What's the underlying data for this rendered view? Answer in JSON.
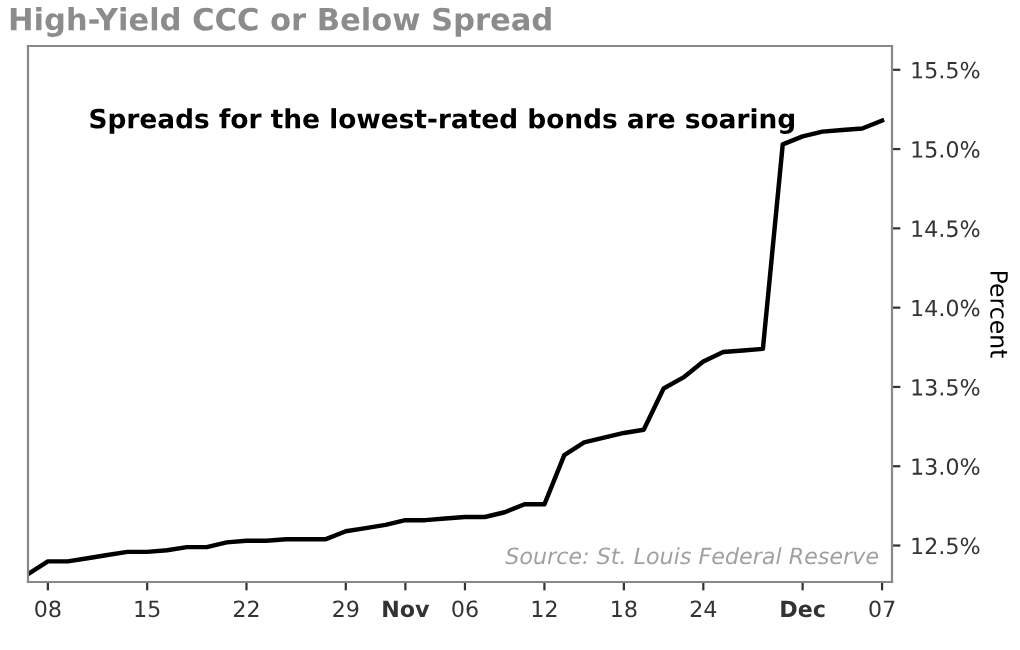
{
  "chart_data": {
    "type": "line",
    "title": "High-Yield CCC or Below Spread",
    "ylabel": "Percent",
    "categories": [
      null,
      "08",
      null,
      null,
      null,
      null,
      "15",
      null,
      null,
      null,
      null,
      "22",
      null,
      null,
      null,
      null,
      "29",
      null,
      null,
      "Nov",
      null,
      null,
      "06",
      null,
      null,
      null,
      "12",
      null,
      null,
      null,
      "18",
      null,
      null,
      null,
      "24",
      null,
      null,
      null,
      null,
      "Dec",
      null,
      null,
      null,
      "07"
    ],
    "series": [
      {
        "color": "#000000",
        "values": [
          12.32,
          12.4,
          12.4,
          12.42,
          12.44,
          12.46,
          12.46,
          12.47,
          12.49,
          12.49,
          12.52,
          12.53,
          12.53,
          12.54,
          12.54,
          12.54,
          12.59,
          12.61,
          12.63,
          12.66,
          12.66,
          12.67,
          12.68,
          12.68,
          12.71,
          12.76,
          12.76,
          13.07,
          13.15,
          13.18,
          13.21,
          13.23,
          13.49,
          13.56,
          13.66,
          13.72,
          13.73,
          13.74,
          15.03,
          15.08,
          15.11,
          15.12,
          15.13,
          15.18
        ]
      }
    ],
    "ylim": [
      12.27,
      15.65
    ],
    "yticks": [
      {
        "value": 12.5,
        "label": "12.5%"
      },
      {
        "value": 13.0,
        "label": "13.0%"
      },
      {
        "value": 13.5,
        "label": "13.5%"
      },
      {
        "value": 14.0,
        "label": "14.0%"
      },
      {
        "value": 14.5,
        "label": "14.5%"
      },
      {
        "value": 15.0,
        "label": "15.0%"
      },
      {
        "value": 15.5,
        "label": "15.5%"
      }
    ],
    "annotations": [
      "Spreads for the lowest-rated bonds are soaring",
      "Source: St. Louis Federal Reserve"
    ],
    "marker": "none",
    "line_style": "solid"
  }
}
